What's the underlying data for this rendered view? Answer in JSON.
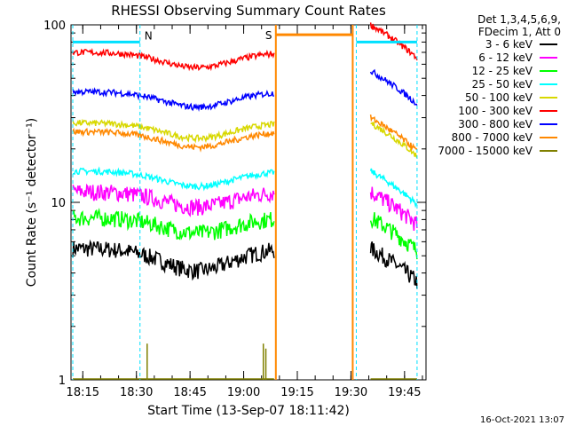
{
  "chart_data": {
    "type": "line",
    "title": "RHESSI Observing Summary Count Rates",
    "xlabel": "Start Time (13-Sep-07 18:11:42)",
    "ylabel": "Count Rate (s⁻¹ detector⁻¹)",
    "ylog": true,
    "ylim": [
      1,
      100
    ],
    "xlim_minutes": [
      18.1,
      19.8
    ],
    "xticks": [
      "18:15",
      "18:30",
      "18:45",
      "19:00",
      "19:15",
      "19:30",
      "19:45"
    ],
    "yticks": [
      "1",
      "10",
      "100"
    ],
    "legend_header": [
      "Det 1,3,4,5,6,9,",
      "FDecim 1, Att 0"
    ],
    "legend_placement": "right",
    "date_stamp": "16-Oct-2021 13:07",
    "markers": [
      {
        "label": "N",
        "color": "#00e0ff"
      },
      {
        "label": "S",
        "color": "#ff8800"
      }
    ],
    "series": [
      {
        "name": "3 - 6 keV",
        "color": "#000000",
        "level1": 5.5,
        "level2": 5.5
      },
      {
        "name": "6 - 12 keV",
        "color": "#ff00ff",
        "level1": 11.5,
        "level2": 11.5
      },
      {
        "name": "12 - 25 keV",
        "color": "#00ff00",
        "level1": 8.2,
        "level2": 8.2
      },
      {
        "name": "25 - 50 keV",
        "color": "#00ffff",
        "level1": 15,
        "level2": 15
      },
      {
        "name": "50 - 100 keV",
        "color": "#d8d800",
        "level1": 28,
        "level2": 28
      },
      {
        "name": "100 - 300 keV",
        "color": "#ff0000",
        "level1": 70,
        "level2": 100
      },
      {
        "name": "300 - 800 keV",
        "color": "#0000ff",
        "level1": 42,
        "level2": 55
      },
      {
        "name": "800 - 7000 keV",
        "color": "#ff8800",
        "level1": 25,
        "level2": 30
      },
      {
        "name": "7000 - 15000 keV",
        "color": "#808000",
        "level1": 1.0,
        "level2": 1.0
      }
    ]
  }
}
